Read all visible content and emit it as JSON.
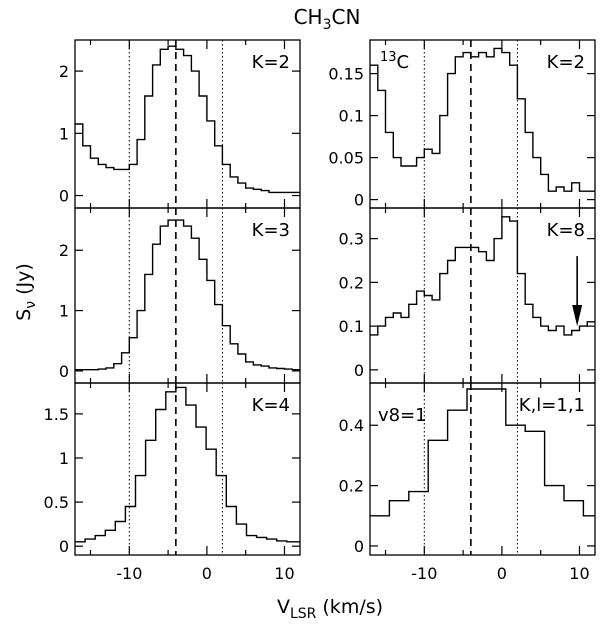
{
  "figure": {
    "title": "CH3CN",
    "xlabel": "V_LSR (km/s)",
    "ylabel": "S_ν (Jy)"
  },
  "chart_data": [
    {
      "type": "line",
      "panel": "left-top",
      "label": "K=2",
      "xlim": [
        -17,
        12
      ],
      "ylim": [
        -0.2,
        2.5
      ],
      "x_ticks": [
        -10,
        0,
        10
      ],
      "y_ticks": [
        0,
        1,
        2
      ],
      "x_tick_labels_shown": false,
      "vlines_dotted": [
        -10,
        2
      ],
      "vline_dashed": -4,
      "series": [
        {
          "step": true,
          "x": [
            -17,
            -16,
            -15,
            -14,
            -13,
            -12,
            -11,
            -10,
            -9,
            -8,
            -7,
            -6,
            -5,
            -4,
            -3,
            -2,
            -1,
            0,
            1,
            2,
            3,
            4,
            5,
            6,
            7,
            8,
            9,
            10,
            11,
            12
          ],
          "y": [
            1.15,
            0.8,
            0.6,
            0.5,
            0.45,
            0.42,
            0.42,
            0.5,
            0.9,
            1.6,
            2.1,
            2.35,
            2.4,
            2.35,
            2.25,
            2.0,
            1.6,
            1.2,
            0.8,
            0.5,
            0.3,
            0.2,
            0.12,
            0.1,
            0.08,
            0.05,
            0.05,
            0.05,
            0.05,
            0.05
          ]
        }
      ]
    },
    {
      "type": "line",
      "panel": "left-middle",
      "label": "K=3",
      "xlim": [
        -17,
        12
      ],
      "ylim": [
        -0.2,
        2.7
      ],
      "x_ticks": [
        -10,
        0,
        10
      ],
      "y_ticks": [
        0,
        1,
        2
      ],
      "x_tick_labels_shown": false,
      "vlines_dotted": [
        -10,
        2
      ],
      "vline_dashed": -4,
      "series": [
        {
          "step": true,
          "x": [
            -17,
            -16,
            -15,
            -14,
            -13,
            -12,
            -11,
            -10,
            -9,
            -8,
            -7,
            -6,
            -5,
            -4,
            -3,
            -2,
            -1,
            0,
            1,
            2,
            3,
            4,
            5,
            6,
            7,
            8,
            9,
            10,
            11,
            12
          ],
          "y": [
            0.02,
            0.02,
            0.02,
            0.03,
            0.05,
            0.12,
            0.3,
            0.55,
            1.0,
            1.6,
            2.1,
            2.4,
            2.5,
            2.5,
            2.4,
            2.2,
            1.85,
            1.5,
            1.1,
            0.75,
            0.45,
            0.28,
            0.15,
            0.1,
            0.08,
            0.05,
            0.04,
            0.03,
            0.02,
            0.02
          ]
        }
      ]
    },
    {
      "type": "line",
      "panel": "left-bottom",
      "label": "K=4",
      "xlim": [
        -17,
        12
      ],
      "ylim": [
        -0.1,
        1.85
      ],
      "x_ticks": [
        -10,
        0,
        10
      ],
      "y_ticks": [
        0,
        0.5,
        1,
        1.5
      ],
      "x_tick_labels_shown": true,
      "vlines_dotted": [
        -10,
        2
      ],
      "vline_dashed": -4,
      "series": [
        {
          "step": true,
          "x": [
            -17,
            -15.7,
            -14.4,
            -13.1,
            -11.8,
            -10.5,
            -9.2,
            -7.9,
            -6.6,
            -5.3,
            -4,
            -2.7,
            -1.4,
            -0.1,
            1.2,
            2.5,
            3.8,
            5.1,
            6.4,
            7.7,
            9,
            10.3,
            11.6
          ],
          "y": [
            0.05,
            0.08,
            0.12,
            0.18,
            0.28,
            0.45,
            0.8,
            1.2,
            1.55,
            1.75,
            1.8,
            1.6,
            1.35,
            1.1,
            0.8,
            0.45,
            0.25,
            0.12,
            0.1,
            0.08,
            0.06,
            0.05,
            0.05
          ]
        }
      ]
    },
    {
      "type": "line",
      "panel": "right-top",
      "label": "K=2",
      "annotation": "13C",
      "xlim": [
        -17,
        12
      ],
      "ylim": [
        -0.01,
        0.19
      ],
      "x_ticks": [
        -10,
        0,
        10
      ],
      "y_ticks": [
        0,
        0.05,
        0.1,
        0.15
      ],
      "x_tick_labels_shown": false,
      "vlines_dotted": [
        -10,
        2
      ],
      "vline_dashed": -4,
      "series": [
        {
          "step": true,
          "x": [
            -17,
            -16,
            -15,
            -14,
            -13,
            -12,
            -11,
            -10,
            -9,
            -8,
            -7,
            -6,
            -5,
            -4,
            -3,
            -2,
            -1,
            0,
            1,
            2,
            3,
            4,
            5,
            6,
            7,
            8,
            9,
            10,
            11
          ],
          "y": [
            0.16,
            0.13,
            0.08,
            0.05,
            0.04,
            0.04,
            0.05,
            0.06,
            0.055,
            0.1,
            0.15,
            0.17,
            0.175,
            0.17,
            0.175,
            0.17,
            0.18,
            0.175,
            0.16,
            0.12,
            0.08,
            0.05,
            0.03,
            0.01,
            0.015,
            0.01,
            0.02,
            0.01,
            0.01
          ]
        }
      ]
    },
    {
      "type": "line",
      "panel": "right-middle",
      "label": "K=8",
      "xlim": [
        -17,
        12
      ],
      "ylim": [
        -0.03,
        0.37
      ],
      "x_ticks": [
        -10,
        0,
        10
      ],
      "y_ticks": [
        0,
        0.1,
        0.2,
        0.3
      ],
      "x_tick_labels_shown": false,
      "vlines_dotted": [
        -10,
        2
      ],
      "vline_dashed": -4,
      "arrow_at": 9.7,
      "series": [
        {
          "step": true,
          "x": [
            -17,
            -16,
            -15,
            -14,
            -13,
            -12,
            -11,
            -10,
            -9,
            -8,
            -7,
            -6,
            -5,
            -4,
            -3,
            -2,
            -1,
            0,
            1,
            2,
            3,
            4,
            5,
            6,
            7,
            8,
            9,
            10,
            11
          ],
          "y": [
            0.08,
            0.1,
            0.12,
            0.13,
            0.12,
            0.15,
            0.18,
            0.17,
            0.16,
            0.22,
            0.25,
            0.28,
            0.28,
            0.28,
            0.27,
            0.25,
            0.3,
            0.35,
            0.34,
            0.22,
            0.15,
            0.12,
            0.1,
            0.09,
            0.1,
            0.08,
            0.09,
            0.1,
            0.11
          ]
        }
      ]
    },
    {
      "type": "line",
      "panel": "right-bottom",
      "label": "K,l=1,1",
      "annotation": "v8=1",
      "xlim": [
        -17,
        12
      ],
      "ylim": [
        -0.03,
        0.54
      ],
      "x_ticks": [
        -10,
        0,
        10
      ],
      "y_ticks": [
        0,
        0.2,
        0.4
      ],
      "x_tick_labels_shown": true,
      "vlines_dotted": [
        -10,
        2
      ],
      "vline_dashed": -4,
      "series": [
        {
          "step": true,
          "x": [
            -17,
            -14.5,
            -12,
            -9.5,
            -7,
            -4.5,
            -2,
            0.5,
            3,
            5.5,
            8,
            10.5
          ],
          "y": [
            0.1,
            0.15,
            0.18,
            0.35,
            0.45,
            0.52,
            0.52,
            0.4,
            0.38,
            0.2,
            0.15,
            0.1
          ]
        }
      ]
    }
  ]
}
